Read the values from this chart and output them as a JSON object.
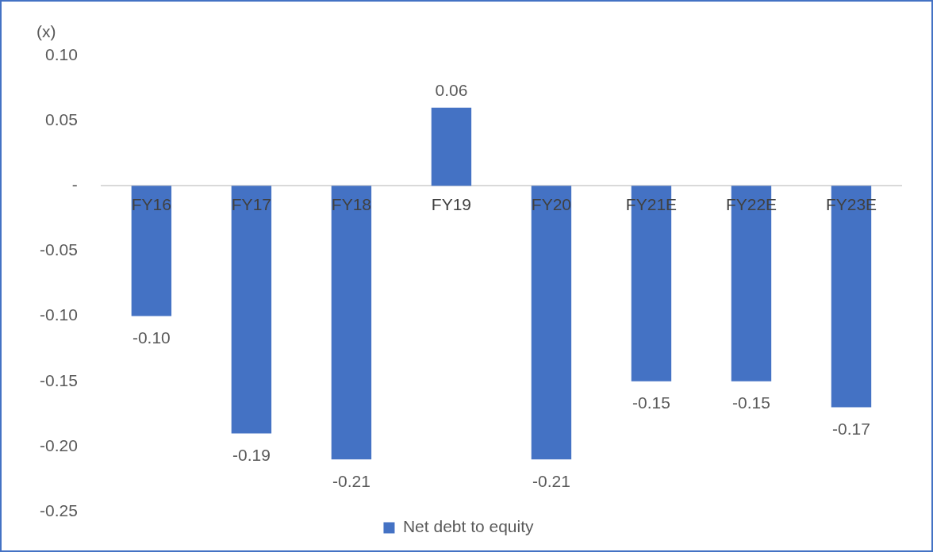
{
  "chart_data": {
    "type": "bar",
    "ylabel": "(x)",
    "categories": [
      "FY16",
      "FY17",
      "FY18",
      "FY19",
      "FY20",
      "FY21E",
      "FY22E",
      "FY23E"
    ],
    "series": [
      {
        "name": "Net debt to equity",
        "color": "#4472c4",
        "values": [
          -0.1,
          -0.19,
          -0.21,
          0.06,
          -0.21,
          -0.15,
          -0.15,
          -0.17
        ],
        "value_labels": [
          "-0.10",
          "-0.19",
          "-0.21",
          "0.06",
          "-0.21",
          "-0.15",
          "-0.15",
          "-0.17"
        ]
      }
    ],
    "ylim": [
      -0.25,
      0.1
    ],
    "yticks": [
      -0.25,
      {
        "value": -0.2,
        "label": "-0.20"
      },
      -0.15,
      {
        "value": -0.1,
        "label": "-0.10"
      },
      -0.05,
      {
        "value": 0,
        "label": "-"
      },
      0.05,
      {
        "value": 0.1,
        "label": "0.10"
      }
    ],
    "grid": false,
    "legend": "bottom"
  }
}
